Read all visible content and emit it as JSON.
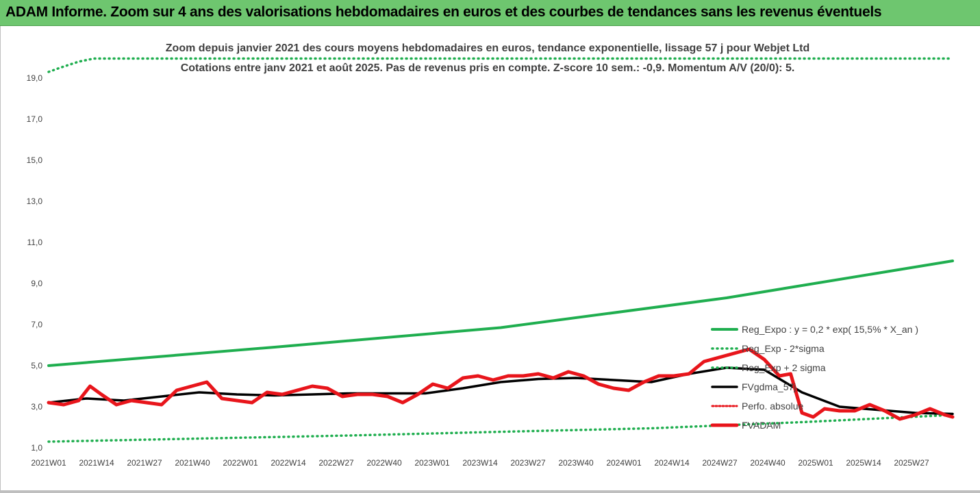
{
  "header": {
    "title": "ADAM Informe. Zoom sur 4 ans des valorisations hebdomadaires en euros et des courbes de tendances sans les revenus éventuels"
  },
  "colors": {
    "header_bg": "#6ec66f",
    "trend": "#1fae4f",
    "black": "#000000",
    "red": "#e8151b",
    "text": "#404040"
  },
  "chart_data": {
    "type": "line",
    "title_line1": "Zoom depuis janvier 2021 des cours moyens hebdomadaires en euros, tendance exponentielle, lissage 57 j pour Webjet Ltd",
    "title_line2": "Cotations entre janv 2021 et août 2025. Pas de revenus pris en compte. Z-score 10 sem.: -0,9. Momentum A/V (20/0): 5.",
    "ylim": [
      1.0,
      20.0
    ],
    "y_ticks": [
      "1,0",
      "3,0",
      "5,0",
      "7,0",
      "9,0",
      "11,0",
      "13,0",
      "15,0",
      "17,0",
      "19,0"
    ],
    "y_tick_values": [
      1,
      3,
      5,
      7,
      9,
      11,
      13,
      15,
      17,
      19
    ],
    "x_ticks": [
      "2021W01",
      "2021W14",
      "2021W27",
      "2021W40",
      "2022W01",
      "2022W14",
      "2022W27",
      "2022W40",
      "2023W01",
      "2023W14",
      "2023W27",
      "2023W40",
      "2024W01",
      "2024W14",
      "2024W27",
      "2024W40",
      "2025W01",
      "2025W14",
      "2025W27"
    ],
    "x_range_weeks": [
      0,
      240
    ],
    "grid": "none",
    "legend_position": "right",
    "legend": [
      {
        "label": "Reg_Expo : y = 0,2 * exp( 15,5% *  X_an )",
        "style": "solid-green"
      },
      {
        "label": "Reg_Exp - 2*sigma",
        "style": "dotted-green"
      },
      {
        "label": "Reg_Exp + 2 sigma",
        "style": "dotted-green"
      },
      {
        "label": "FVgdma_57j",
        "style": "solid-black"
      },
      {
        "label": "Perfo. absolue",
        "style": "dotted-red"
      },
      {
        "label": "FVADAM",
        "style": "solid-red"
      }
    ],
    "series": [
      {
        "name": "Reg_Expo : y = 0,2 * exp( 15,5% *  X_an )",
        "x": [
          0,
          60,
          120,
          180,
          240
        ],
        "values": [
          5.0,
          5.9,
          6.85,
          8.3,
          10.1
        ]
      },
      {
        "name": "Reg_Exp - 2*sigma",
        "x": [
          0,
          40,
          80,
          120,
          160,
          200,
          240
        ],
        "values": [
          1.3,
          1.45,
          1.6,
          1.78,
          1.95,
          2.25,
          2.6
        ]
      },
      {
        "name": "Reg_Exp + 2 sigma",
        "x": [
          0,
          3,
          8,
          12,
          32,
          215,
          240
        ],
        "values": [
          19.3,
          19.5,
          19.8,
          20.0,
          20.0,
          20.0,
          20.0
        ]
      },
      {
        "name": "FVgdma_57j",
        "x": [
          0,
          10,
          20,
          30,
          40,
          50,
          60,
          70,
          80,
          90,
          100,
          110,
          120,
          130,
          140,
          150,
          160,
          170,
          180,
          190,
          200,
          210,
          220,
          230,
          240
        ],
        "values": [
          3.2,
          3.4,
          3.3,
          3.5,
          3.7,
          3.6,
          3.55,
          3.6,
          3.65,
          3.65,
          3.65,
          3.9,
          4.2,
          4.35,
          4.4,
          4.3,
          4.2,
          4.6,
          4.9,
          4.8,
          3.7,
          3.0,
          2.85,
          2.7,
          2.65
        ]
      },
      {
        "name": "FVADAM",
        "x": [
          0,
          4,
          8,
          11,
          14,
          18,
          22,
          26,
          30,
          34,
          38,
          42,
          46,
          50,
          54,
          58,
          62,
          66,
          70,
          74,
          78,
          82,
          86,
          90,
          94,
          98,
          102,
          106,
          110,
          114,
          118,
          122,
          126,
          130,
          134,
          138,
          142,
          146,
          150,
          154,
          158,
          162,
          166,
          170,
          174,
          178,
          182,
          186,
          190,
          194,
          197,
          200,
          203,
          206,
          210,
          214,
          218,
          222,
          226,
          230,
          234,
          238,
          240
        ],
        "values": [
          3.2,
          3.1,
          3.3,
          4.0,
          3.6,
          3.1,
          3.3,
          3.2,
          3.1,
          3.8,
          4.0,
          4.2,
          3.4,
          3.3,
          3.2,
          3.7,
          3.6,
          3.8,
          4.0,
          3.9,
          3.5,
          3.6,
          3.6,
          3.5,
          3.2,
          3.6,
          4.1,
          3.9,
          4.4,
          4.5,
          4.3,
          4.5,
          4.5,
          4.6,
          4.4,
          4.7,
          4.5,
          4.1,
          3.9,
          3.8,
          4.2,
          4.5,
          4.5,
          4.6,
          5.2,
          5.4,
          5.6,
          5.8,
          5.3,
          4.5,
          4.6,
          2.7,
          2.5,
          2.9,
          2.8,
          2.8,
          3.1,
          2.8,
          2.4,
          2.6,
          2.9,
          2.6,
          2.5
        ]
      }
    ]
  }
}
